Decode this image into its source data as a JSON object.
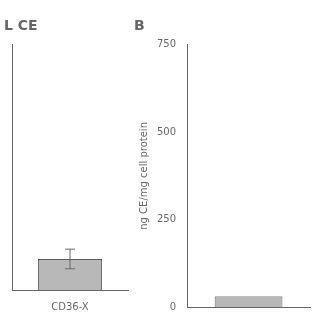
{
  "chart_data": [
    {
      "type": "bar",
      "title": "L CE",
      "categories": [
        "CD36-X"
      ],
      "values": [
        95
      ],
      "errors": [
        30
      ],
      "color": "#b8b8b8",
      "ylim": [
        0,
        750
      ],
      "yticks": [
        0,
        250,
        500,
        750
      ],
      "grid": false,
      "tick_labels": "x"
    },
    {
      "type": "bar",
      "title": "B",
      "categories": [
        null
      ],
      "values": [
        30
      ],
      "color": "#b8b8b8",
      "ylim": [
        0,
        750
      ],
      "yticks": [
        0,
        250,
        500,
        750
      ],
      "grid": false,
      "tick_labels": "y",
      "y_label": "ng CE/mg cell protein"
    }
  ]
}
